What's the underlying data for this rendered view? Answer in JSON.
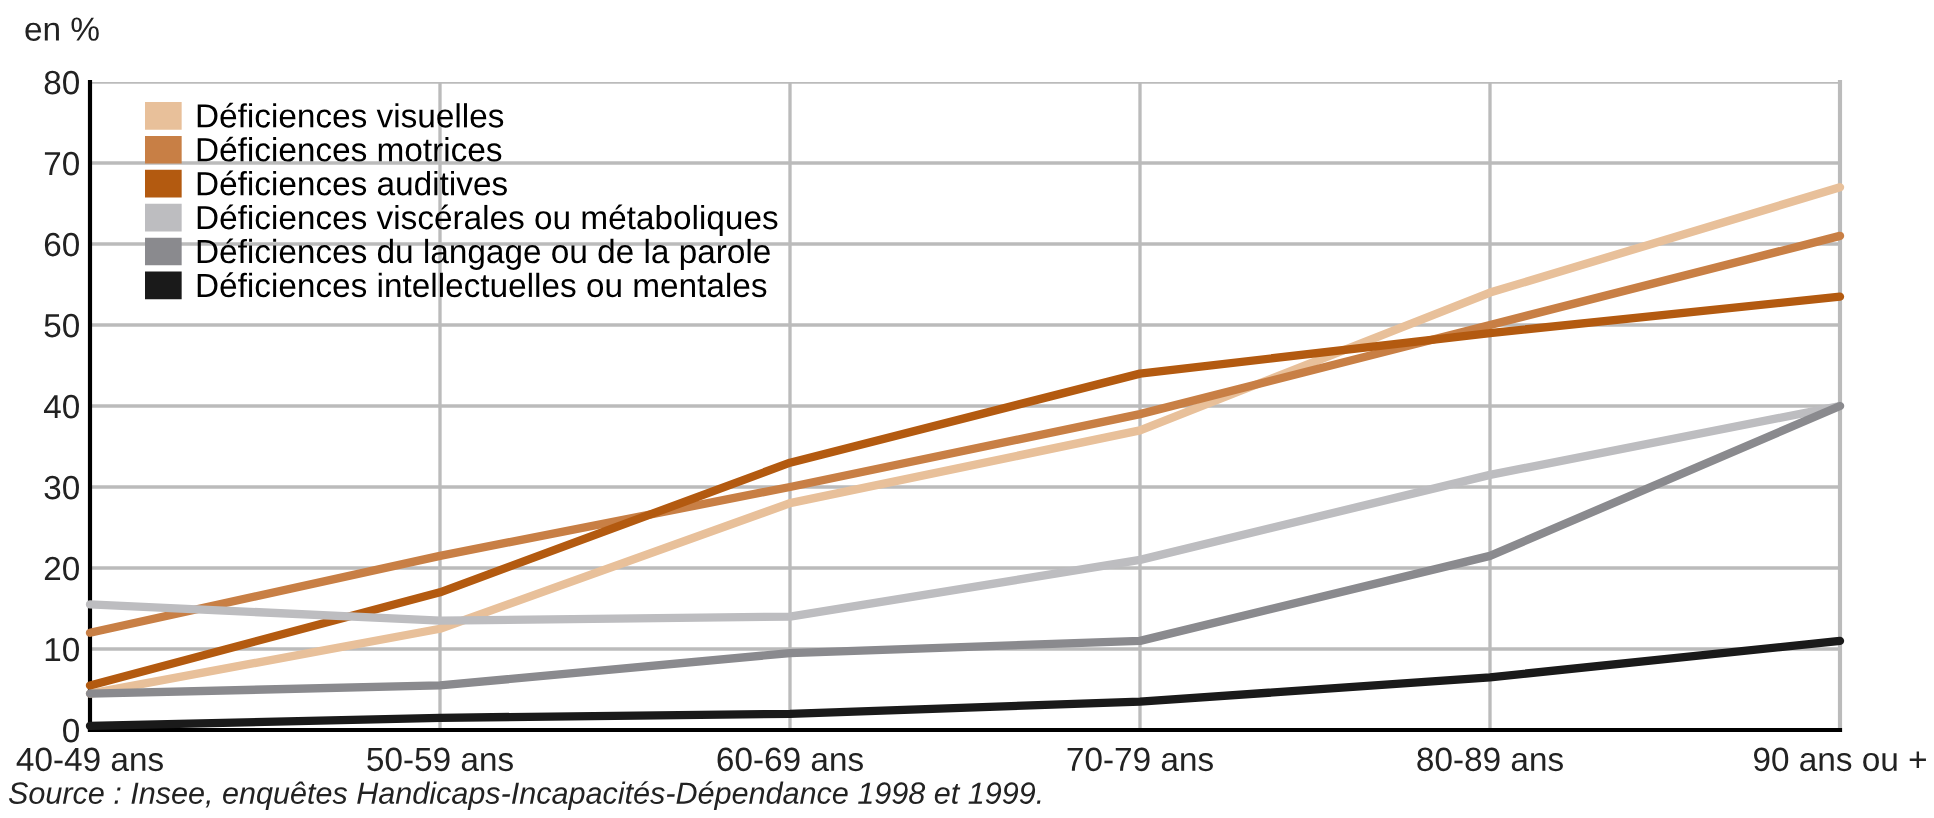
{
  "chart_data": {
    "type": "line",
    "ylabel": "en %",
    "categories": [
      "40-49 ans",
      "50-59 ans",
      "60-69 ans",
      "70-79 ans",
      "80-89 ans",
      "90 ans ou +"
    ],
    "series": [
      {
        "name": "Déficiences visuelles",
        "color": "#e8c09a",
        "values": [
          4.5,
          12.5,
          28,
          37,
          54,
          67
        ]
      },
      {
        "name": "Déficiences motrices",
        "color": "#c87f45",
        "values": [
          12,
          21.5,
          30,
          39,
          50,
          61
        ]
      },
      {
        "name": "Déficiences auditives",
        "color": "#b35a10",
        "values": [
          5.5,
          17,
          33,
          44,
          49,
          53.5
        ]
      },
      {
        "name": "Déficiences viscérales ou métaboliques",
        "color": "#bdbdc0",
        "values": [
          15.5,
          13.5,
          14,
          21,
          31.5,
          40
        ]
      },
      {
        "name": "Déficiences du langage ou de la parole",
        "color": "#8a8a8e",
        "values": [
          4.5,
          5.5,
          9.5,
          11,
          21.5,
          40
        ]
      },
      {
        "name": "Déficiences intellectuelles ou mentales",
        "color": "#1a1a1a",
        "values": [
          0.5,
          1.5,
          2,
          3.5,
          6.5,
          11
        ]
      }
    ],
    "ylim": [
      0,
      80
    ],
    "yticks": [
      0,
      10,
      20,
      30,
      40,
      50,
      60,
      70,
      80
    ],
    "grid": true,
    "legend": "top left",
    "marker": "none",
    "line_style": "solid",
    "annotations": [
      "Source : Insee, enquêtes Handicaps-Incapacités-Dépendance 1998 et 1999."
    ]
  }
}
